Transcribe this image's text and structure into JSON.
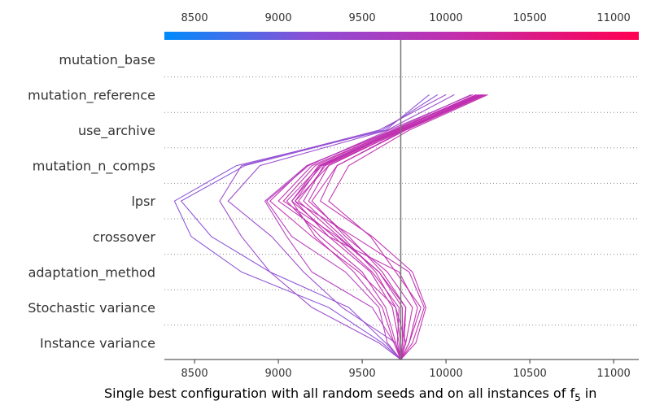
{
  "chart_data": {
    "type": "line",
    "subtype": "shap-decision-plot",
    "xlabel": "Single best configuration with all random seeds and on all instances of f",
    "xlabel_sub": "5",
    "xlabel_tail": " in",
    "xlim": [
      8320,
      11150
    ],
    "x_ticks": [
      "8500",
      "9000",
      "9500",
      "10000",
      "10500",
      "11000"
    ],
    "x_tick_values": [
      8500,
      9000,
      9500,
      10000,
      10500,
      11000
    ],
    "base_value": 9730,
    "features": [
      "mutation_base",
      "mutation_reference",
      "use_archive",
      "mutation_n_comps",
      "lpsr",
      "crossover",
      "adaptation_method",
      "Stochastic variance",
      "Instance variance"
    ],
    "colorbar": {
      "colors": [
        "#008bfb",
        "#8a4fd6",
        "#c02fb0",
        "#ff0051"
      ]
    },
    "grid": "dotted-rows",
    "series": [
      {
        "color": "#8a4fd6",
        "values": [
          9730,
          9620,
          9300,
          8780,
          8480,
          8380,
          8750,
          9640,
          9900
        ]
      },
      {
        "color": "#8a4fd6",
        "values": [
          9730,
          9640,
          9420,
          8950,
          8600,
          8420,
          8800,
          9620,
          9950
        ]
      },
      {
        "color": "#9a46cc",
        "values": [
          9730,
          9600,
          9200,
          8950,
          8780,
          8650,
          8780,
          9600,
          10000
        ]
      },
      {
        "color": "#9a46cc",
        "values": [
          9730,
          9700,
          9380,
          9150,
          8960,
          8700,
          8890,
          9650,
          10050
        ]
      },
      {
        "color": "#b53bbe",
        "values": [
          9730,
          9690,
          9560,
          9200,
          9050,
          8920,
          9170,
          9680,
          10150
        ]
      },
      {
        "color": "#c02fb0",
        "values": [
          9730,
          9760,
          9700,
          9480,
          9200,
          8950,
          9170,
          9690,
          10180
        ]
      },
      {
        "color": "#c02fb0",
        "values": [
          9730,
          9780,
          9830,
          9720,
          9300,
          9000,
          9200,
          9700,
          10200
        ]
      },
      {
        "color": "#c02fb0",
        "values": [
          9730,
          9800,
          9870,
          9780,
          9450,
          9100,
          9250,
          9720,
          10220
        ]
      },
      {
        "color": "#c02fb0",
        "values": [
          9730,
          9740,
          9760,
          9600,
          9350,
          9030,
          9220,
          9700,
          10190
        ]
      },
      {
        "color": "#b53bbe",
        "values": [
          9730,
          9650,
          9600,
          9400,
          9080,
          8930,
          9180,
          9660,
          10160
        ]
      },
      {
        "color": "#c02fb0",
        "values": [
          9730,
          9720,
          9680,
          9550,
          9300,
          9100,
          9300,
          9740,
          10230
        ]
      },
      {
        "color": "#c02fb0",
        "values": [
          9730,
          9760,
          9800,
          9650,
          9400,
          9200,
          9350,
          9760,
          10240
        ]
      },
      {
        "color": "#c02fb0",
        "values": [
          9730,
          9700,
          9640,
          9500,
          9250,
          9050,
          9250,
          9720,
          10210
        ]
      },
      {
        "color": "#c02fb0",
        "values": [
          9730,
          9780,
          9850,
          9700,
          9550,
          9300,
          9420,
          9780,
          10250
        ]
      },
      {
        "color": "#c02fb0",
        "values": [
          9730,
          9730,
          9700,
          9580,
          9380,
          9150,
          9270,
          9730,
          10200
        ]
      },
      {
        "color": "#c02fb0",
        "values": [
          9730,
          9690,
          9620,
          9450,
          9220,
          9080,
          9240,
          9710,
          10180
        ]
      },
      {
        "color": "#c02fb0",
        "values": [
          9730,
          9750,
          9760,
          9620,
          9420,
          9180,
          9300,
          9740,
          10220
        ]
      },
      {
        "color": "#c02fb0",
        "values": [
          9730,
          9820,
          9880,
          9800,
          9560,
          9250,
          9350,
          9750,
          10230
        ]
      },
      {
        "color": "#c02fb0",
        "values": [
          9730,
          9710,
          9720,
          9560,
          9330,
          9080,
          9260,
          9730,
          10210
        ]
      },
      {
        "color": "#c02fb0",
        "values": [
          9730,
          9740,
          9740,
          9600,
          9360,
          9120,
          9280,
          9750,
          10220
        ]
      }
    ]
  }
}
